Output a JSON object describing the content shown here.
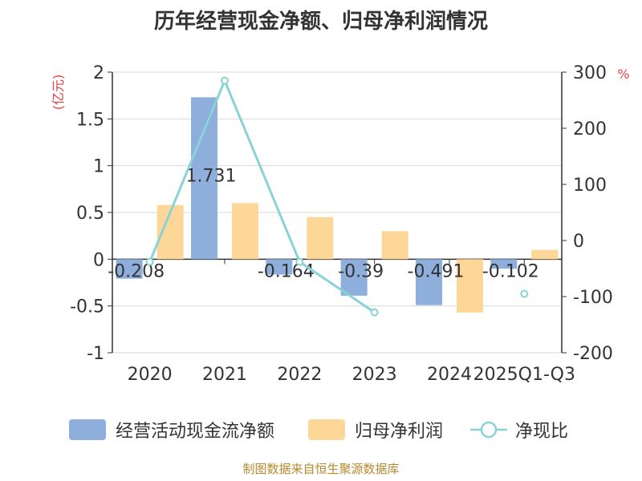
{
  "title": "历年经营现金净额、归母净利润情况",
  "source": "制图数据来自恒生聚源数据库",
  "colors": {
    "operating_cash": "#8eaedb",
    "net_profit": "#fdd797",
    "ratio_line": "#89d2d8",
    "left_unit": "#e04040",
    "right_unit": "#e04040",
    "axis": "#333333",
    "grid": "#d9d9d9",
    "text": "#333333"
  },
  "chart_data": {
    "type": "bar",
    "title": "历年经营现金净额、归母净利润情况",
    "categories": [
      "2020",
      "2021",
      "2022",
      "2023",
      "2024",
      "2025Q1-Q3"
    ],
    "left_axis": {
      "unit": "(亿元)",
      "ylim": [
        -1,
        2
      ],
      "ticks": [
        "-1",
        "-0.5",
        "0",
        "0.5",
        "1",
        "1.5",
        "2"
      ]
    },
    "right_axis": {
      "unit": "%",
      "ylim": [
        -200,
        300
      ],
      "ticks": [
        "-200",
        "-100",
        "0",
        "100",
        "200",
        "300"
      ]
    },
    "series": [
      {
        "name": "经营活动现金流净额",
        "axis": "left",
        "kind": "bar",
        "values": [
          -0.208,
          1.731,
          -0.164,
          -0.39,
          -0.491,
          -0.102
        ],
        "labels": [
          "-0.208",
          "1.731",
          "-0.164",
          "-0.39",
          "-0.491",
          "-0.102"
        ]
      },
      {
        "name": "归母净利润",
        "axis": "left",
        "kind": "bar",
        "values": [
          0.58,
          0.6,
          0.45,
          0.3,
          -0.57,
          0.1
        ]
      },
      {
        "name": "净现比",
        "axis": "right",
        "kind": "line",
        "values": [
          -38,
          285,
          -38,
          -128,
          null,
          -95
        ]
      }
    ],
    "legend": [
      "经营活动现金流净额",
      "归母净利润",
      "净现比"
    ],
    "legend_position": "bottom"
  }
}
